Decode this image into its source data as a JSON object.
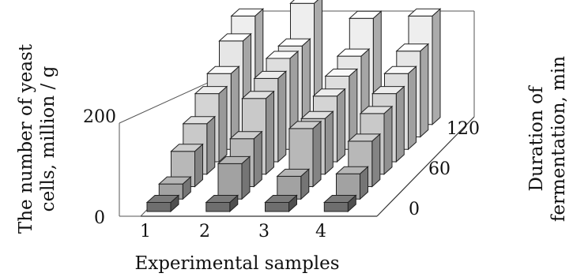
{
  "chart_data": {
    "type": "bar",
    "subtype": "3d-grid",
    "title": "",
    "xlabel": "Experimental samples",
    "ylabel": "The number of yeast cells, million / g",
    "zlabel": "Duration of fermentation, min",
    "categories": [
      "1",
      "2",
      "3",
      "4"
    ],
    "depth_ticks": [
      "0",
      "60",
      "120"
    ],
    "y_ticks": [
      "0",
      "200"
    ],
    "ylim": [
      0,
      300
    ],
    "rows": [
      {
        "name": "0",
        "values": [
          18,
          18,
          18,
          18
        ],
        "color": "#6e6e6e"
      },
      {
        "name": "15",
        "values": [
          30,
          70,
          45,
          50
        ],
        "color": "#a2a2a2"
      },
      {
        "name": "30",
        "values": [
          70,
          95,
          115,
          90
        ],
        "color": "#b8b8b8"
      },
      {
        "name": "45",
        "values": [
          100,
          150,
          110,
          120
        ],
        "color": "#c9c9c9"
      },
      {
        "name": "60",
        "values": [
          135,
          165,
          130,
          135
        ],
        "color": "#d4d4d4"
      },
      {
        "name": "75",
        "values": [
          150,
          180,
          145,
          150
        ],
        "color": "#dedede"
      },
      {
        "name": "90",
        "values": [
          190,
          180,
          160,
          170
        ],
        "color": "#e6e6e6"
      },
      {
        "name": "105",
        "values": [
          215,
          240,
          210,
          215
        ],
        "color": "#eeeeee"
      }
    ],
    "grid": false,
    "legend": "none"
  }
}
